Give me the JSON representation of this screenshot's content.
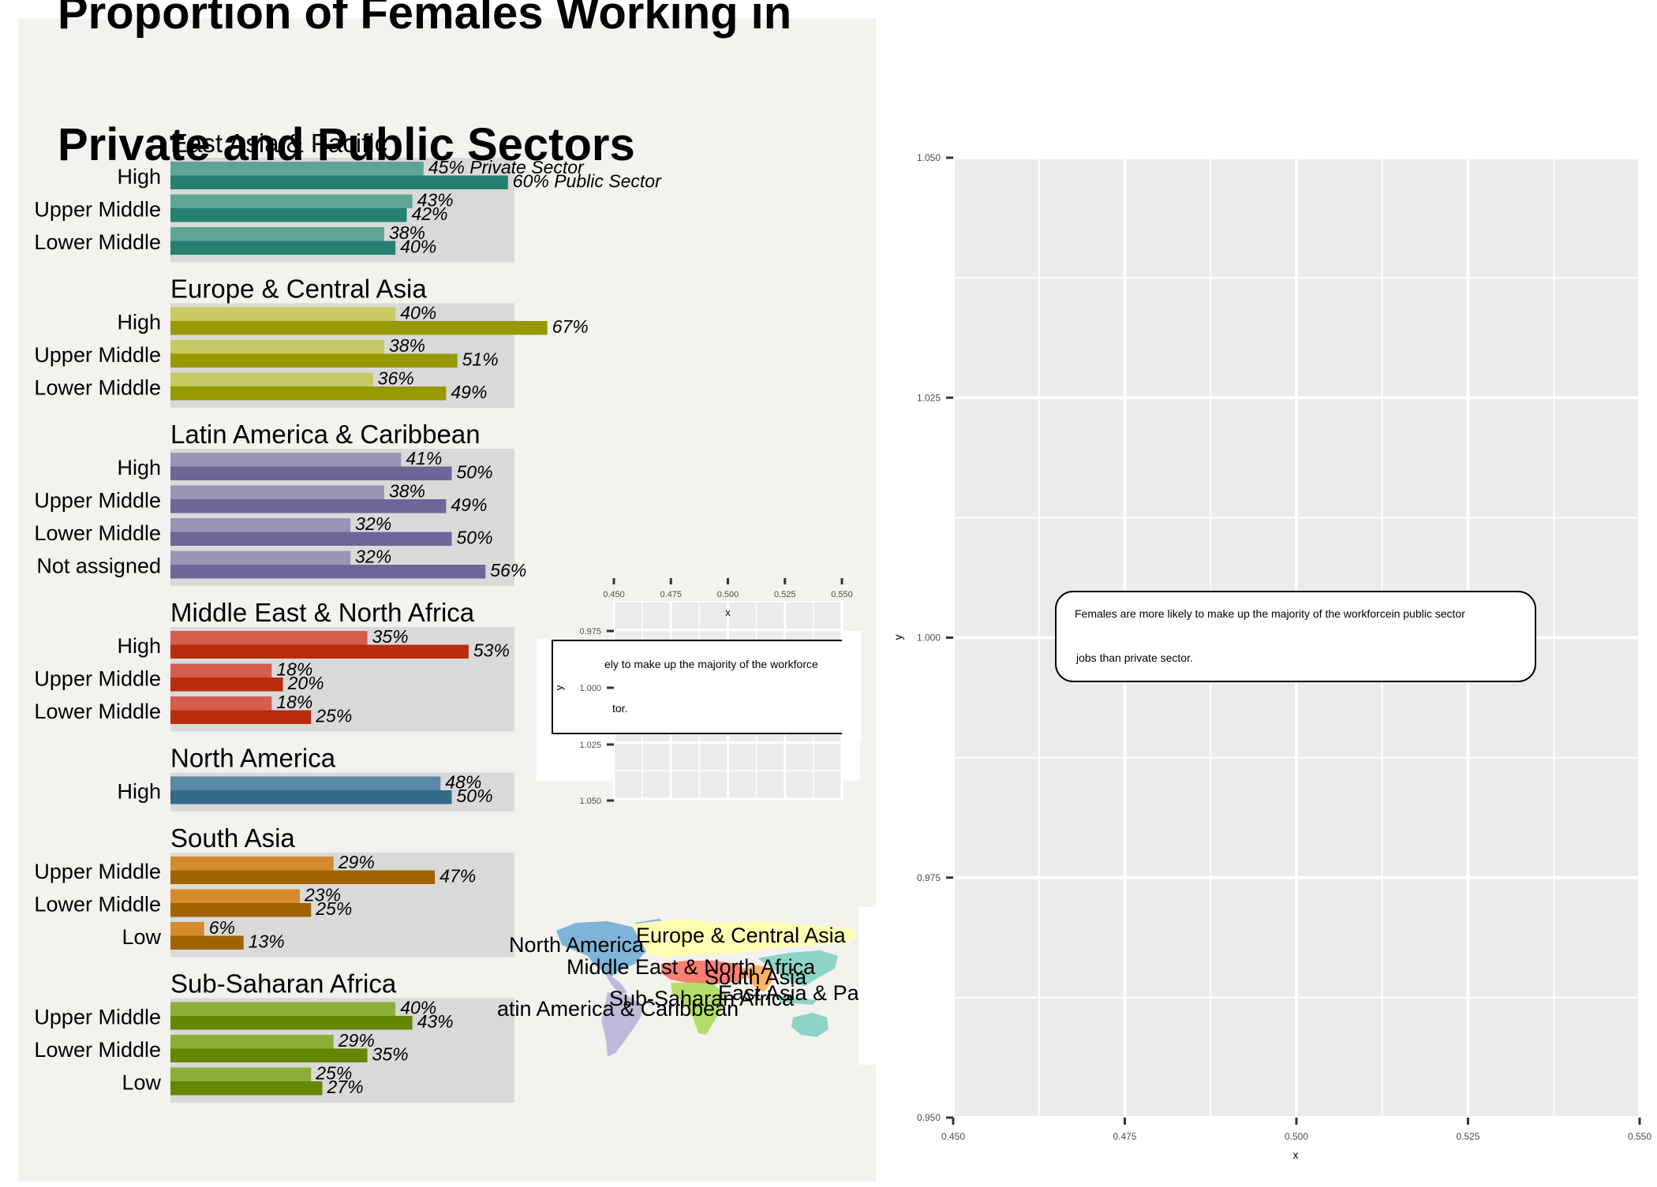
{
  "title_lines": [
    "Proportion of Females Working in",
    "Private and Public Sectors"
  ],
  "chart_data": [
    {
      "type": "bar",
      "orientation": "horizontal",
      "value_format": "percent",
      "series_legend": {
        "private": "Private Sector",
        "public": "Public Sector"
      },
      "regions": [
        {
          "name": "East Asia & Pacific",
          "light": "#5fa597",
          "dark": "#25806f",
          "groups": [
            {
              "label": "High",
              "private": 45,
              "public": 60
            },
            {
              "label": "Upper Middle",
              "private": 43,
              "public": 42
            },
            {
              "label": "Lower Middle",
              "private": 38,
              "public": 40
            }
          ]
        },
        {
          "name": "Europe & Central Asia",
          "light": "#c6c862",
          "dark": "#969900",
          "groups": [
            {
              "label": "High",
              "private": 40,
              "public": 67
            },
            {
              "label": "Upper Middle",
              "private": 38,
              "public": 51
            },
            {
              "label": "Lower Middle",
              "private": 36,
              "public": 49
            }
          ]
        },
        {
          "name": "Latin America & Caribbean",
          "light": "#9a95b8",
          "dark": "#6d6698",
          "groups": [
            {
              "label": "High",
              "private": 41,
              "public": 50
            },
            {
              "label": "Upper Middle",
              "private": 38,
              "public": 49
            },
            {
              "label": "Lower Middle",
              "private": 32,
              "public": 50
            },
            {
              "label": "Not assigned",
              "private": 32,
              "public": 56
            }
          ]
        },
        {
          "name": "Middle East & North Africa",
          "light": "#d55d4d",
          "dark": "#b92c0c",
          "groups": [
            {
              "label": "High",
              "private": 35,
              "public": 53
            },
            {
              "label": "Upper Middle",
              "private": 18,
              "public": 20
            },
            {
              "label": "Lower Middle",
              "private": 18,
              "public": 25
            }
          ]
        },
        {
          "name": "North America",
          "light": "#5d88a7",
          "dark": "#356a88",
          "groups": [
            {
              "label": "High",
              "private": 48,
              "public": 50
            }
          ]
        },
        {
          "name": "South Asia",
          "light": "#d48c2a",
          "dark": "#a06300",
          "groups": [
            {
              "label": "Upper Middle",
              "private": 29,
              "public": 47
            },
            {
              "label": "Lower Middle",
              "private": 23,
              "public": 25
            },
            {
              "label": "Low",
              "private": 6,
              "public": 13
            }
          ]
        },
        {
          "name": "Sub-Saharan Africa",
          "light": "#8caf3a",
          "dark": "#638700",
          "groups": [
            {
              "label": "Upper Middle",
              "private": 40,
              "public": 43
            },
            {
              "label": "Lower Middle",
              "private": 29,
              "public": 35
            },
            {
              "label": "Low",
              "private": 25,
              "public": 27
            }
          ]
        }
      ]
    },
    {
      "type": "scatter",
      "xlabel": "x",
      "ylabel": "y",
      "xlim": [
        0.45,
        0.55
      ],
      "ylim": [
        0.95,
        1.05
      ],
      "x_ticks": [
        "0.450",
        "0.475",
        "0.500",
        "0.525",
        "0.550"
      ],
      "y_ticks": [
        "1.050",
        "1.025",
        "1.000",
        "0.975",
        "0.950"
      ],
      "grid": true,
      "annotation": {
        "x": 0.5,
        "y": 1.0,
        "lines": [
          "Females are more likely to make up the majority of the workforcein public sector",
          "jobs than private sector."
        ]
      }
    },
    {
      "type": "scatter",
      "xlabel": "x",
      "ylabel": "y",
      "x_ticks": [
        "0.450",
        "0.475",
        "0.500",
        "0.525",
        "0.550"
      ],
      "y_ticks": [
        "0.975",
        "1.000",
        "1.025",
        "1.050"
      ],
      "grid": true,
      "annotation_lines": [
        "ely to make up the majority of the workforce",
        "tor."
      ]
    }
  ],
  "map": {
    "labels": [
      "North America",
      "Europe & Central Asia",
      "Middle East & North Africa",
      "South Asia",
      "Sub-Saharan Africa",
      "East Asia & Pa",
      "atin America & Caribbean"
    ],
    "colors": {
      "na": "#7fb3d8",
      "eca": "#ffffb3",
      "mena": "#fb7f72",
      "sa": "#fdb462",
      "ssa": "#b3de69",
      "eap": "#8dd3c7",
      "lac": "#bebada"
    }
  },
  "colors": {
    "panel_bg": "#f3f2ef",
    "region_bg": "#d9d9d9",
    "plot_bg": "#ebebeb"
  }
}
